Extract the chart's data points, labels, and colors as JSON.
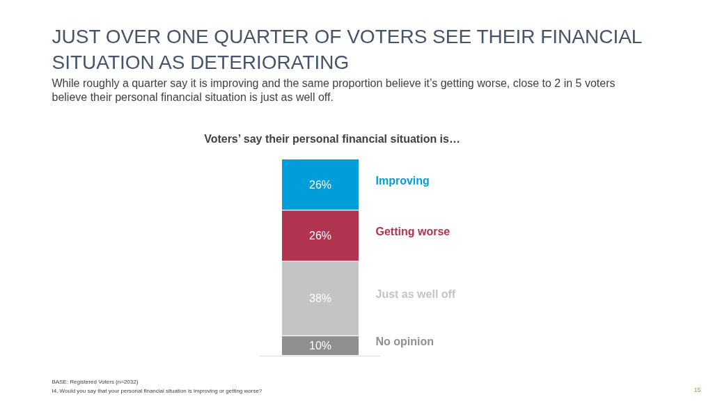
{
  "chart_data": {
    "type": "bar",
    "stacked": true,
    "legend": false,
    "title": "JUST OVER ONE QUARTER OF VOTERS SEE THEIR FINANCIAL SITUATION AS DETERIORATING",
    "subtitle": "While roughly a quarter say it is improving and the same proportion believe it’s getting worse, close to 2 in 5 voters believe their personal financial situation is just as well off.",
    "xlabel": "Voters’ say their personal financial situation is…",
    "categories": [
      null
    ],
    "series": [
      {
        "name": "No opinion",
        "color": "#8f8f8f",
        "values": [
          10
        ],
        "value_labels": [
          "10%"
        ]
      },
      {
        "name": "Just as well off",
        "color": "#c4c4c4",
        "values": [
          38
        ],
        "value_labels": [
          "38%"
        ]
      },
      {
        "name": "Getting worse",
        "color": "#b03350",
        "values": [
          26
        ],
        "value_labels": [
          "26%"
        ]
      },
      {
        "name": "Improving",
        "color": "#009ddb",
        "values": [
          26
        ],
        "value_labels": [
          "26%"
        ]
      }
    ],
    "annotations": [
      "BASE: Registered Voters (n=2032)",
      "I4. Would you say that your personal financial situation is improving or getting worse?",
      "15"
    ]
  }
}
